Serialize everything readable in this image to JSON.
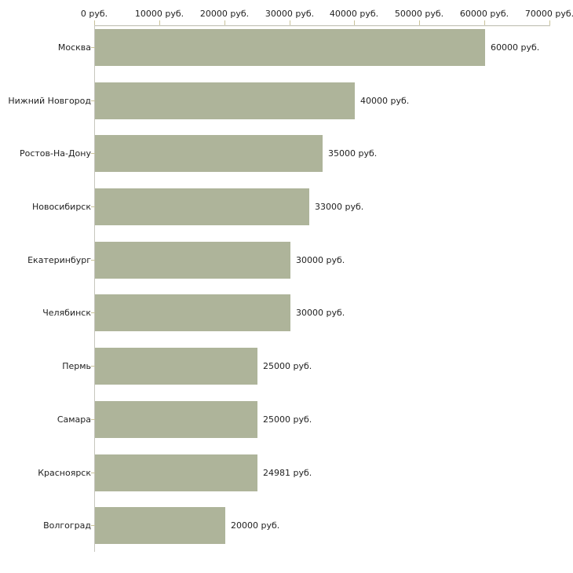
{
  "chart_data": {
    "type": "bar",
    "orientation": "horizontal",
    "title": "",
    "xlabel": "",
    "ylabel": "",
    "unit": "руб.",
    "xlim": [
      0,
      70000
    ],
    "grid": false,
    "legend": false,
    "categories": [
      "Москва",
      "Нижний Новгород",
      "Ростов-На-Дону",
      "Новосибирск",
      "Екатеринбург",
      "Челябинск",
      "Пермь",
      "Самара",
      "Красноярск",
      "Волгоград"
    ],
    "values": [
      60000,
      40000,
      35000,
      33000,
      30000,
      30000,
      25000,
      25000,
      24981,
      20000
    ],
    "value_labels": [
      "60000 руб.",
      "40000 руб.",
      "35000 руб.",
      "33000 руб.",
      "30000 руб.",
      "30000 руб.",
      "25000 руб.",
      "25000 руб.",
      "24981 руб.",
      "20000 руб."
    ],
    "x_ticks": [
      0,
      10000,
      20000,
      30000,
      40000,
      50000,
      60000,
      70000
    ],
    "x_tick_labels": [
      "0 руб.",
      "10000 руб.",
      "20000 руб.",
      "30000 руб.",
      "40000 руб.",
      "50000 руб.",
      "60000 руб.",
      "70000 руб."
    ],
    "colors": {
      "bar_fill": "#aeb49a",
      "tick_mark": "#c9c39a",
      "axis_line": "#c6c6be",
      "axis_highlight": "#f0efe6",
      "text": "#222222",
      "background": "#ffffff"
    }
  }
}
